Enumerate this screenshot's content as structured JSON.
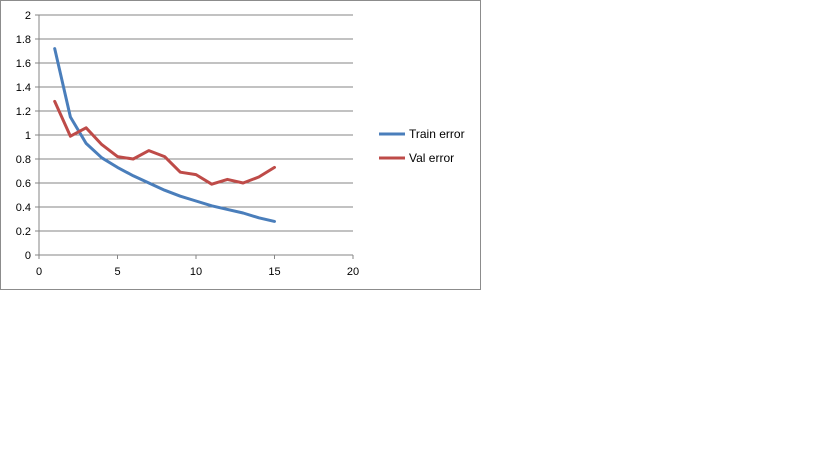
{
  "chart_data": {
    "type": "line",
    "title": "",
    "xlabel": "",
    "ylabel": "",
    "xlim": [
      0,
      20
    ],
    "ylim": [
      0,
      2
    ],
    "x_ticks": [
      0,
      5,
      10,
      15,
      20
    ],
    "y_ticks": [
      0,
      0.2,
      0.4,
      0.6,
      0.8,
      1,
      1.2,
      1.4,
      1.6,
      1.8,
      2
    ],
    "grid": "horizontal",
    "legend_position": "right",
    "x": [
      1,
      2,
      3,
      4,
      5,
      6,
      7,
      8,
      9,
      10,
      11,
      12,
      13,
      14,
      15
    ],
    "series": [
      {
        "name": "Train error",
        "color": "#4a7ebb",
        "values": [
          1.72,
          1.15,
          0.93,
          0.81,
          0.73,
          0.66,
          0.6,
          0.54,
          0.49,
          0.45,
          0.41,
          0.38,
          0.35,
          0.31,
          0.28
        ]
      },
      {
        "name": "Val error",
        "color": "#be4b48",
        "values": [
          1.28,
          0.99,
          1.06,
          0.92,
          0.82,
          0.8,
          0.87,
          0.82,
          0.69,
          0.67,
          0.59,
          0.63,
          0.6,
          0.65,
          0.73
        ]
      }
    ]
  }
}
